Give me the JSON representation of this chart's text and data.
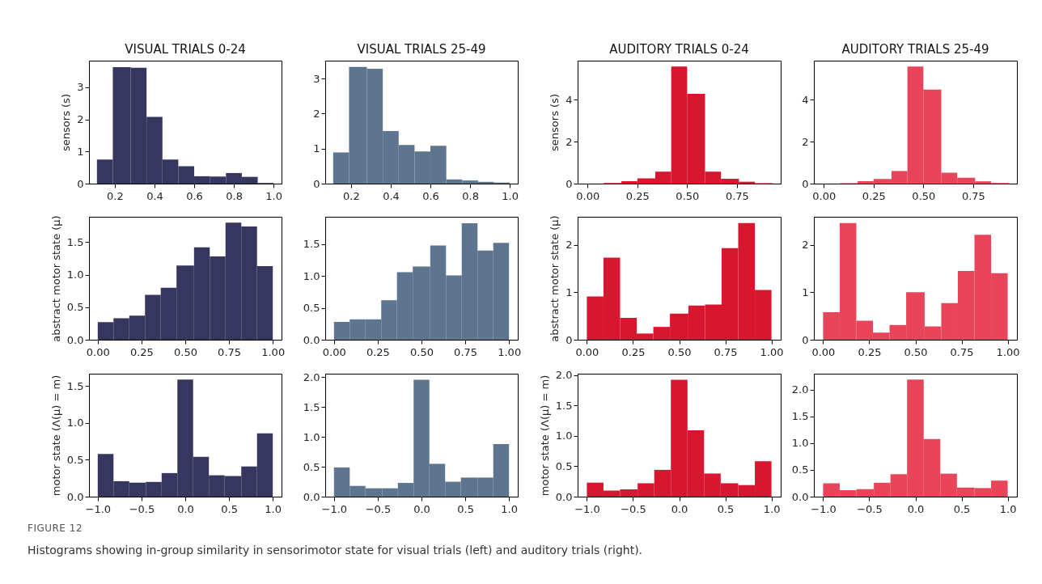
{
  "chart_data": [
    {
      "type": "histogram",
      "title": "VISUAL TRIALS 0-24",
      "ylabel": "sensors (s)",
      "color": "#36365e",
      "bins": [
        0.11,
        0.19,
        0.28,
        0.36,
        0.44,
        0.52,
        0.6,
        0.68,
        0.76,
        0.84,
        0.92,
        1.0
      ],
      "values": [
        0.75,
        3.63,
        3.61,
        2.08,
        0.75,
        0.54,
        0.23,
        0.22,
        0.33,
        0.21,
        0.02
      ],
      "xlim": [
        0.07,
        1.04
      ],
      "xticks": [
        0.2,
        0.4,
        0.6,
        0.8,
        {
          "value": 1,
          "label": "1.0"
        }
      ],
      "ylim": [
        0,
        3.83
      ],
      "yticks": [
        0,
        1,
        2,
        3
      ],
      "annotations": [
        "FIGURE 12",
        "Histograms showing in-group similarity in sensorimotor state for visual trials (left) and auditory trials (right)."
      ]
    },
    {
      "type": "histogram",
      "title": "VISUAL TRIALS 25-49",
      "color": "#5e7590",
      "bins": [
        0.11,
        0.19,
        0.28,
        0.36,
        0.44,
        0.52,
        0.6,
        0.68,
        0.76,
        0.84,
        0.92,
        1.0
      ],
      "values": [
        0.89,
        3.33,
        3.28,
        1.5,
        1.1,
        0.92,
        1.08,
        0.12,
        0.09,
        0.05,
        0.03
      ],
      "xlim": [
        0.07,
        1.04
      ],
      "xticks": [
        0.2,
        0.4,
        0.6,
        0.8,
        {
          "value": 1,
          "label": "1.0"
        }
      ],
      "ylim": [
        0,
        3.51
      ],
      "yticks": [
        0,
        1,
        2,
        3
      ]
    },
    {
      "type": "histogram",
      "title": "AUDITORY TRIALS 0-24",
      "ylabel": "sensors (s)",
      "color": "#d7162f",
      "bins": [
        0.08,
        0.17,
        0.25,
        0.34,
        0.42,
        0.5,
        0.59,
        0.67,
        0.76,
        0.84,
        0.93
      ],
      "values": [
        0.03,
        0.12,
        0.25,
        0.57,
        5.58,
        4.28,
        0.57,
        0.23,
        0.09,
        0.02
      ],
      "xlim": [
        -0.05,
        0.97
      ],
      "xticks": [
        {
          "value": 0,
          "label": "0.00"
        },
        {
          "value": 0.25,
          "label": "0.25"
        },
        {
          "value": 0.5,
          "label": "0.50"
        },
        {
          "value": 0.75,
          "label": "0.75"
        }
      ],
      "ylim": [
        0,
        5.86
      ],
      "yticks": [
        0,
        2,
        4
      ]
    },
    {
      "type": "histogram",
      "title": "AUDITORY TRIALS 25-49",
      "color": "#e8455a",
      "bins": [
        0.08,
        0.17,
        0.25,
        0.34,
        0.42,
        0.5,
        0.59,
        0.67,
        0.76,
        0.84,
        0.93
      ],
      "values": [
        0.02,
        0.12,
        0.22,
        0.6,
        5.58,
        4.48,
        0.52,
        0.28,
        0.11,
        0.03
      ],
      "xlim": [
        -0.05,
        0.97
      ],
      "xticks": [
        {
          "value": 0,
          "label": "0.00"
        },
        {
          "value": 0.25,
          "label": "0.25"
        },
        {
          "value": 0.5,
          "label": "0.50"
        },
        {
          "value": 0.75,
          "label": "0.75"
        }
      ],
      "ylim": [
        0,
        5.86
      ],
      "yticks": [
        0,
        2,
        4
      ]
    },
    {
      "type": "histogram",
      "ylabel": "abstract motor state (μ)",
      "color": "#36365e",
      "bins": [
        0,
        0.09,
        0.18,
        0.27,
        0.36,
        0.45,
        0.55,
        0.64,
        0.73,
        0.82,
        0.91,
        1.0
      ],
      "values": [
        0.27,
        0.33,
        0.37,
        0.69,
        0.8,
        1.14,
        1.42,
        1.28,
        1.8,
        1.74,
        1.13
      ],
      "xlim": [
        -0.05,
        1.05
      ],
      "xticks": [
        {
          "value": 0,
          "label": "0.00"
        },
        {
          "value": 0.25,
          "label": "0.25"
        },
        {
          "value": 0.5,
          "label": "0.50"
        },
        {
          "value": 0.75,
          "label": "0.75"
        },
        {
          "value": 1,
          "label": "1.00"
        }
      ],
      "ylim": [
        0,
        1.89
      ],
      "yticks": [
        {
          "value": 0,
          "label": "0.0"
        },
        0.5,
        {
          "value": 1,
          "label": "1.0"
        },
        1.5
      ]
    },
    {
      "type": "histogram",
      "color": "#5e7590",
      "bins": [
        0,
        0.09,
        0.18,
        0.27,
        0.36,
        0.45,
        0.55,
        0.64,
        0.73,
        0.82,
        0.91,
        1.0
      ],
      "values": [
        0.28,
        0.32,
        0.32,
        0.62,
        1.06,
        1.15,
        1.48,
        1.01,
        1.83,
        1.4,
        1.52
      ],
      "xlim": [
        -0.05,
        1.05
      ],
      "xticks": [
        {
          "value": 0,
          "label": "0.00"
        },
        {
          "value": 0.25,
          "label": "0.25"
        },
        {
          "value": 0.5,
          "label": "0.50"
        },
        {
          "value": 0.75,
          "label": "0.75"
        },
        {
          "value": 1,
          "label": "1.00"
        }
      ],
      "ylim": [
        0,
        1.93
      ],
      "yticks": [
        {
          "value": 0,
          "label": "0.0"
        },
        0.5,
        {
          "value": 1,
          "label": "1.0"
        },
        1.5
      ]
    },
    {
      "type": "histogram",
      "ylabel": "abstract motor state (μ)",
      "color": "#d7162f",
      "bins": [
        0,
        0.09,
        0.18,
        0.27,
        0.36,
        0.45,
        0.55,
        0.64,
        0.73,
        0.82,
        0.91,
        1.0
      ],
      "values": [
        0.91,
        1.73,
        0.46,
        0.13,
        0.27,
        0.55,
        0.72,
        0.74,
        1.93,
        2.46,
        1.05
      ],
      "xlim": [
        -0.05,
        1.05
      ],
      "xticks": [
        {
          "value": 0,
          "label": "0.00"
        },
        {
          "value": 0.25,
          "label": "0.25"
        },
        {
          "value": 0.5,
          "label": "0.50"
        },
        {
          "value": 0.75,
          "label": "0.75"
        },
        {
          "value": 1,
          "label": "1.00"
        }
      ],
      "ylim": [
        0,
        2.59
      ],
      "yticks": [
        0,
        1,
        2
      ]
    },
    {
      "type": "histogram",
      "color": "#e8455a",
      "bins": [
        0,
        0.09,
        0.18,
        0.27,
        0.36,
        0.45,
        0.55,
        0.64,
        0.73,
        0.82,
        0.91,
        1.0
      ],
      "values": [
        0.58,
        2.46,
        0.4,
        0.15,
        0.31,
        1.0,
        0.28,
        0.77,
        1.45,
        2.21,
        1.4
      ],
      "xlim": [
        -0.05,
        1.05
      ],
      "xticks": [
        {
          "value": 0,
          "label": "0.00"
        },
        {
          "value": 0.25,
          "label": "0.25"
        },
        {
          "value": 0.5,
          "label": "0.50"
        },
        {
          "value": 0.75,
          "label": "0.75"
        },
        {
          "value": 1,
          "label": "1.00"
        }
      ],
      "ylim": [
        0,
        2.59
      ],
      "yticks": [
        0,
        1,
        2
      ]
    },
    {
      "type": "histogram",
      "ylabel": "motor state (Λ(μ) = m)",
      "color": "#36365e",
      "bins": [
        -1,
        -0.82,
        -0.64,
        -0.45,
        -0.27,
        -0.09,
        0.09,
        0.27,
        0.45,
        0.64,
        0.82,
        1.0
      ],
      "values": [
        0.58,
        0.21,
        0.19,
        0.2,
        0.32,
        1.59,
        0.54,
        0.29,
        0.28,
        0.41,
        0.86
      ],
      "xlim": [
        -1.1,
        1.1
      ],
      "xticks": [
        {
          "value": -1,
          "label": "−1.0"
        },
        {
          "value": -0.5,
          "label": "−0.5"
        },
        {
          "value": 0,
          "label": "0.0"
        },
        0.5,
        {
          "value": 1,
          "label": "1.0"
        }
      ],
      "ylim": [
        0,
        1.67
      ],
      "yticks": [
        {
          "value": 0,
          "label": "0.0"
        },
        0.5,
        {
          "value": 1,
          "label": "1.0"
        },
        1.5
      ]
    },
    {
      "type": "histogram",
      "color": "#5e7590",
      "bins": [
        -1,
        -0.82,
        -0.64,
        -0.45,
        -0.27,
        -0.09,
        0.09,
        0.27,
        0.45,
        0.64,
        0.82,
        1.0
      ],
      "values": [
        0.49,
        0.18,
        0.14,
        0.14,
        0.23,
        1.96,
        0.55,
        0.25,
        0.32,
        0.32,
        0.88
      ],
      "xlim": [
        -1.1,
        1.1
      ],
      "xticks": [
        {
          "value": -1,
          "label": "−1.0"
        },
        {
          "value": -0.5,
          "label": "−0.5"
        },
        {
          "value": 0,
          "label": "0.0"
        },
        0.5,
        {
          "value": 1,
          "label": "1.0"
        }
      ],
      "ylim": [
        0,
        2.06
      ],
      "yticks": [
        {
          "value": 0,
          "label": "0.0"
        },
        0.5,
        {
          "value": 1,
          "label": "1.0"
        },
        1.5,
        {
          "value": 2,
          "label": "2.0"
        }
      ]
    },
    {
      "type": "histogram",
      "ylabel": "motor state (Λ(μ) = m)",
      "color": "#d7162f",
      "bins": [
        -1,
        -0.82,
        -0.64,
        -0.45,
        -0.27,
        -0.09,
        0.09,
        0.27,
        0.45,
        0.64,
        0.82,
        1.0
      ],
      "values": [
        0.23,
        0.1,
        0.12,
        0.22,
        0.44,
        1.92,
        1.09,
        0.38,
        0.22,
        0.19,
        0.58
      ],
      "xlim": [
        -1.1,
        1.1
      ],
      "xticks": [
        {
          "value": -1,
          "label": "−1.0"
        },
        {
          "value": -0.5,
          "label": "−0.5"
        },
        {
          "value": 0,
          "label": "0.0"
        },
        0.5,
        {
          "value": 1,
          "label": "1.0"
        }
      ],
      "ylim": [
        0,
        2.02
      ],
      "yticks": [
        {
          "value": 0,
          "label": "0.0"
        },
        0.5,
        {
          "value": 1,
          "label": "1.0"
        },
        1.5,
        {
          "value": 2,
          "label": "2.0"
        }
      ]
    },
    {
      "type": "histogram",
      "color": "#e8455a",
      "bins": [
        -1,
        -0.82,
        -0.64,
        -0.45,
        -0.27,
        -0.09,
        0.09,
        0.27,
        0.45,
        0.64,
        0.82,
        1.0
      ],
      "values": [
        0.25,
        0.12,
        0.14,
        0.26,
        0.42,
        2.19,
        1.08,
        0.43,
        0.17,
        0.16,
        0.3
      ],
      "xlim": [
        -1.1,
        1.1
      ],
      "xticks": [
        {
          "value": -1,
          "label": "−1.0"
        },
        {
          "value": -0.5,
          "label": "−0.5"
        },
        {
          "value": 0,
          "label": "0.0"
        },
        0.5,
        {
          "value": 1,
          "label": "1.0"
        }
      ],
      "ylim": [
        0,
        2.3
      ],
      "yticks": [
        {
          "value": 0,
          "label": "0.0"
        },
        0.5,
        {
          "value": 1,
          "label": "1.0"
        },
        1.5,
        {
          "value": 2,
          "label": "2.0"
        }
      ]
    }
  ]
}
